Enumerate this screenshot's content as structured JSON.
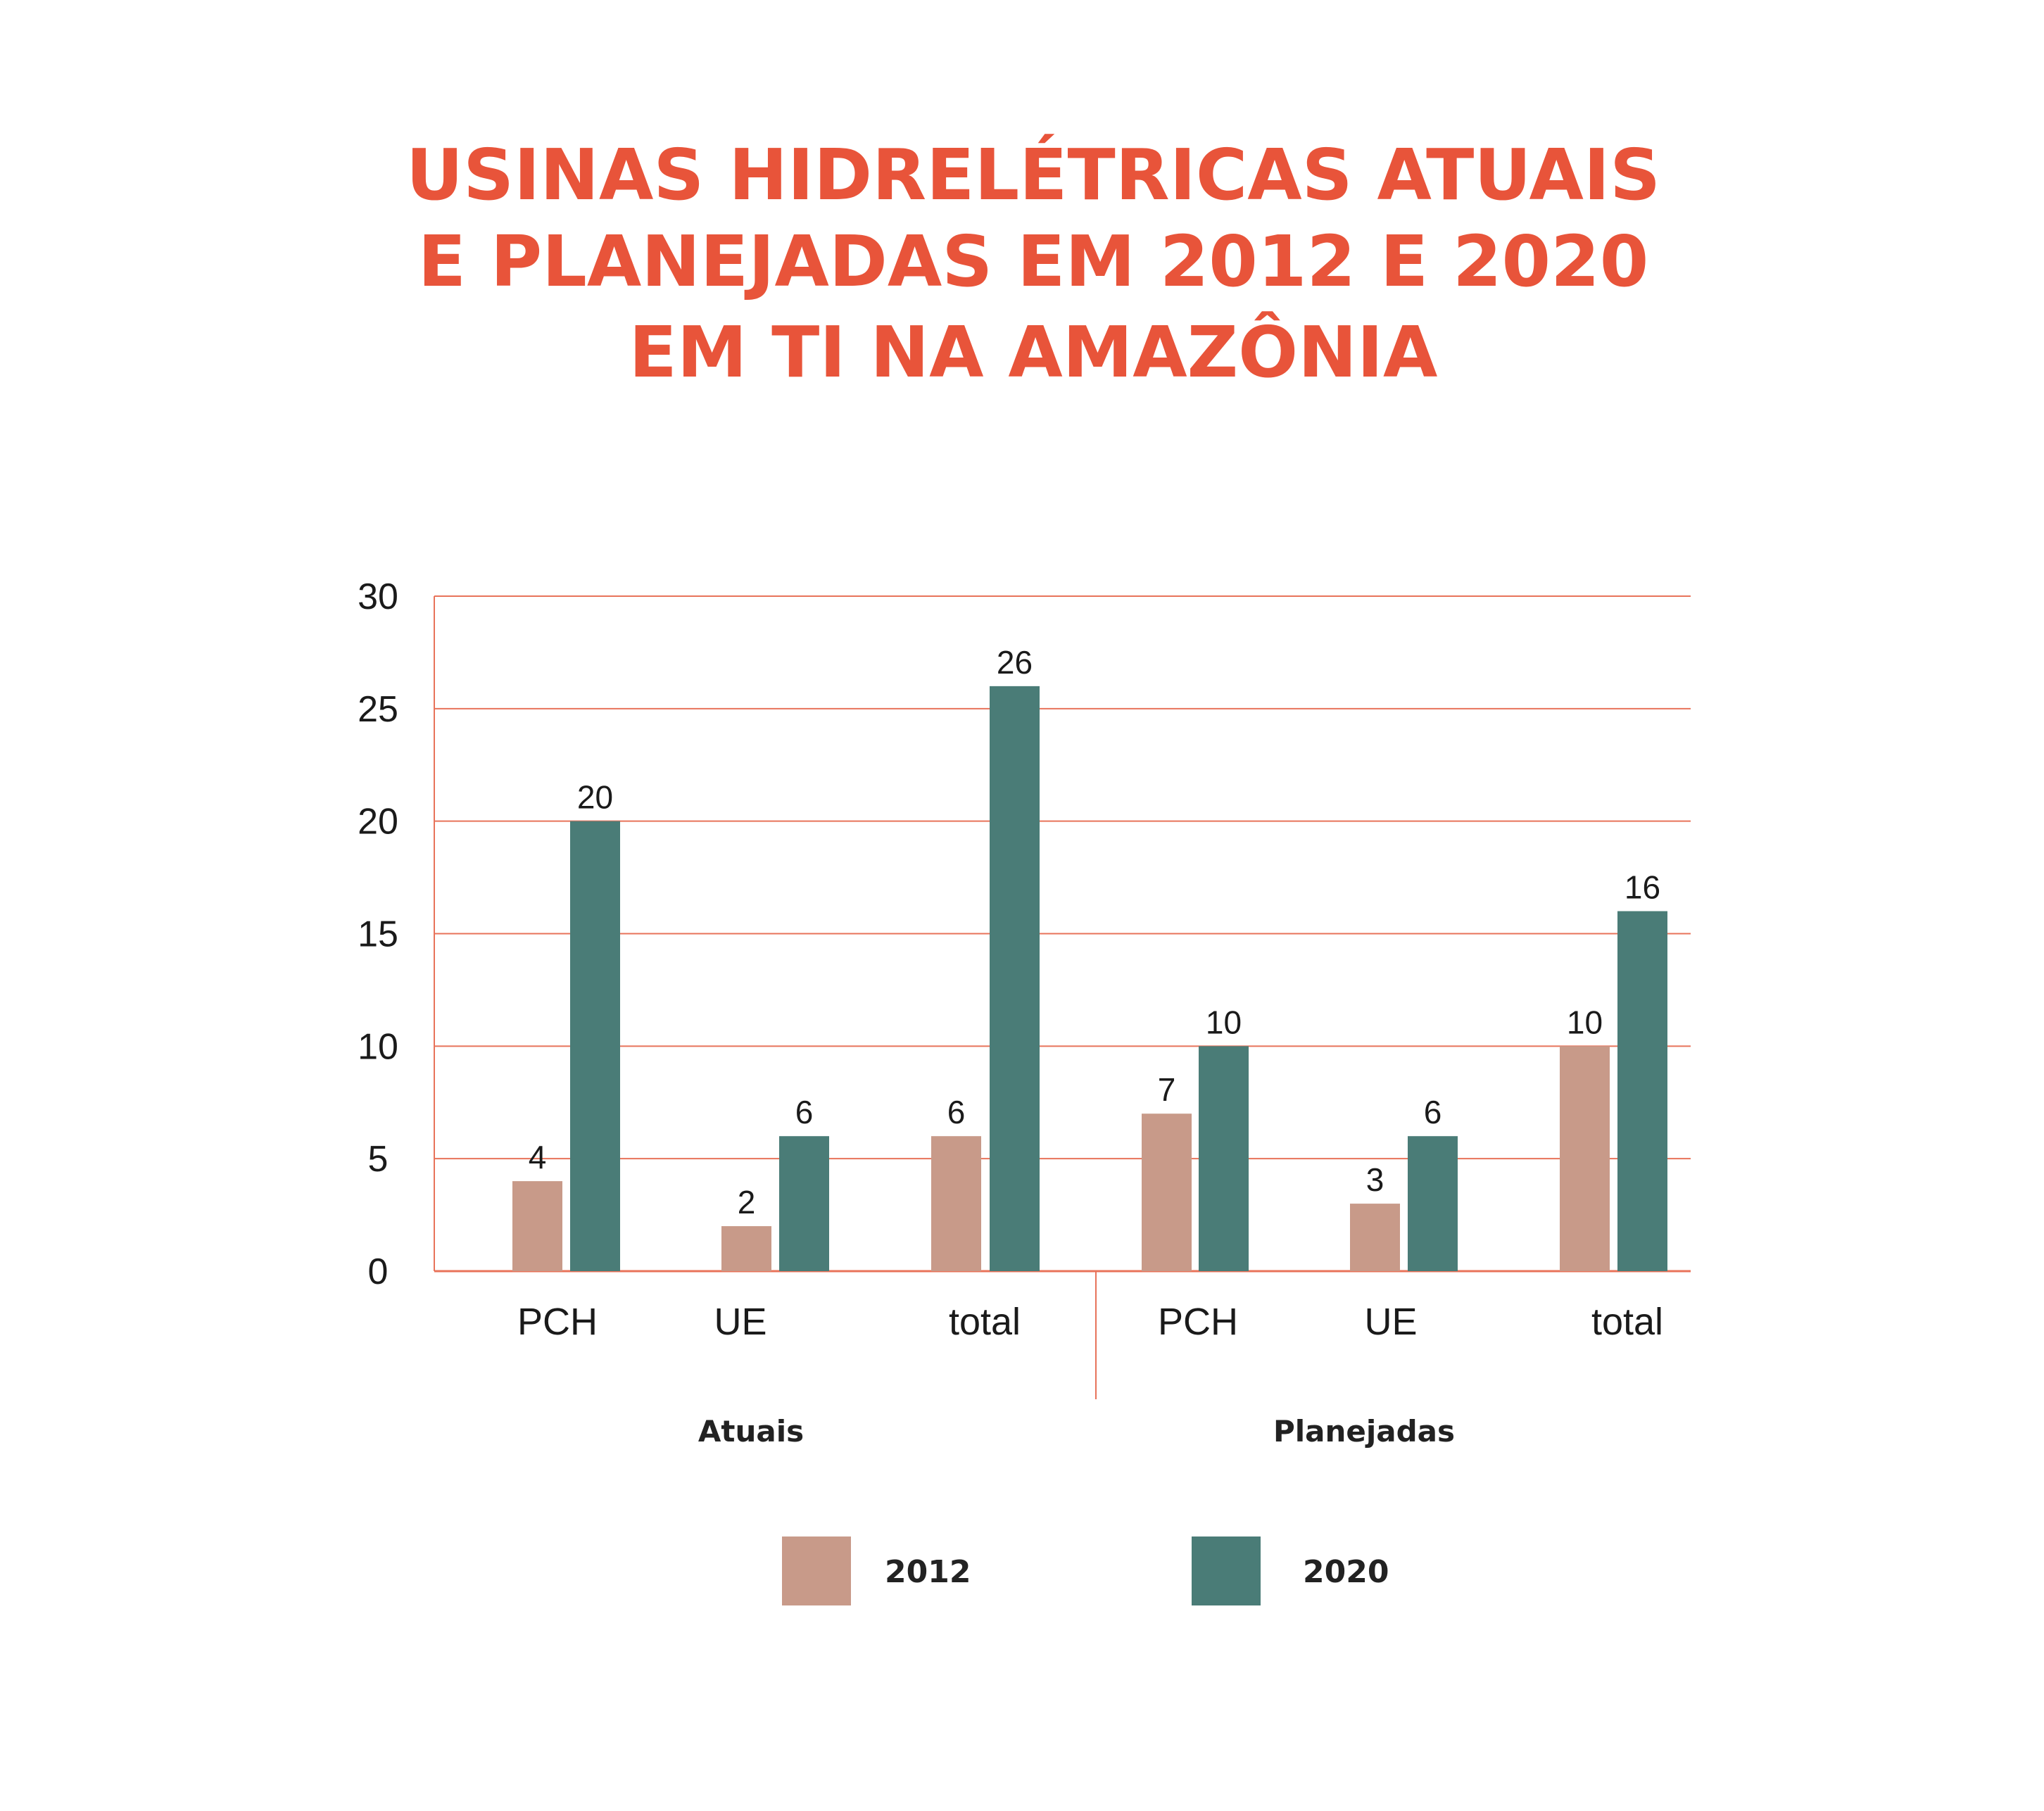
{
  "chart_data": {
    "type": "bar",
    "title_lines": [
      "USINAS HIDRELÉTRICAS ATUAIS",
      "E PLANEJADAS EM 2012 E 2020",
      "EM TI NA AMAZÔNIA"
    ],
    "categories": [
      "PCH",
      "UE",
      "total",
      "PCH",
      "UE",
      "total"
    ],
    "groups": [
      {
        "label": "Atuais",
        "categories": [
          "PCH",
          "UE",
          "total"
        ]
      },
      {
        "label": "Planejadas",
        "categories": [
          "PCH",
          "UE",
          "total"
        ]
      }
    ],
    "series": [
      {
        "name": "2012",
        "color": "#c89a89",
        "values": [
          4,
          2,
          6,
          7,
          3,
          10
        ]
      },
      {
        "name": "2020",
        "color": "#4a7c77",
        "values": [
          20,
          6,
          26,
          10,
          6,
          16
        ]
      }
    ],
    "ylim": [
      0,
      30
    ],
    "yticks": [
      "0",
      "5",
      "10",
      "15",
      "20",
      "25",
      "30"
    ],
    "grid": true,
    "grid_color": "#e8735a",
    "title_color": "#e8543a",
    "legend_position": "bottom"
  }
}
